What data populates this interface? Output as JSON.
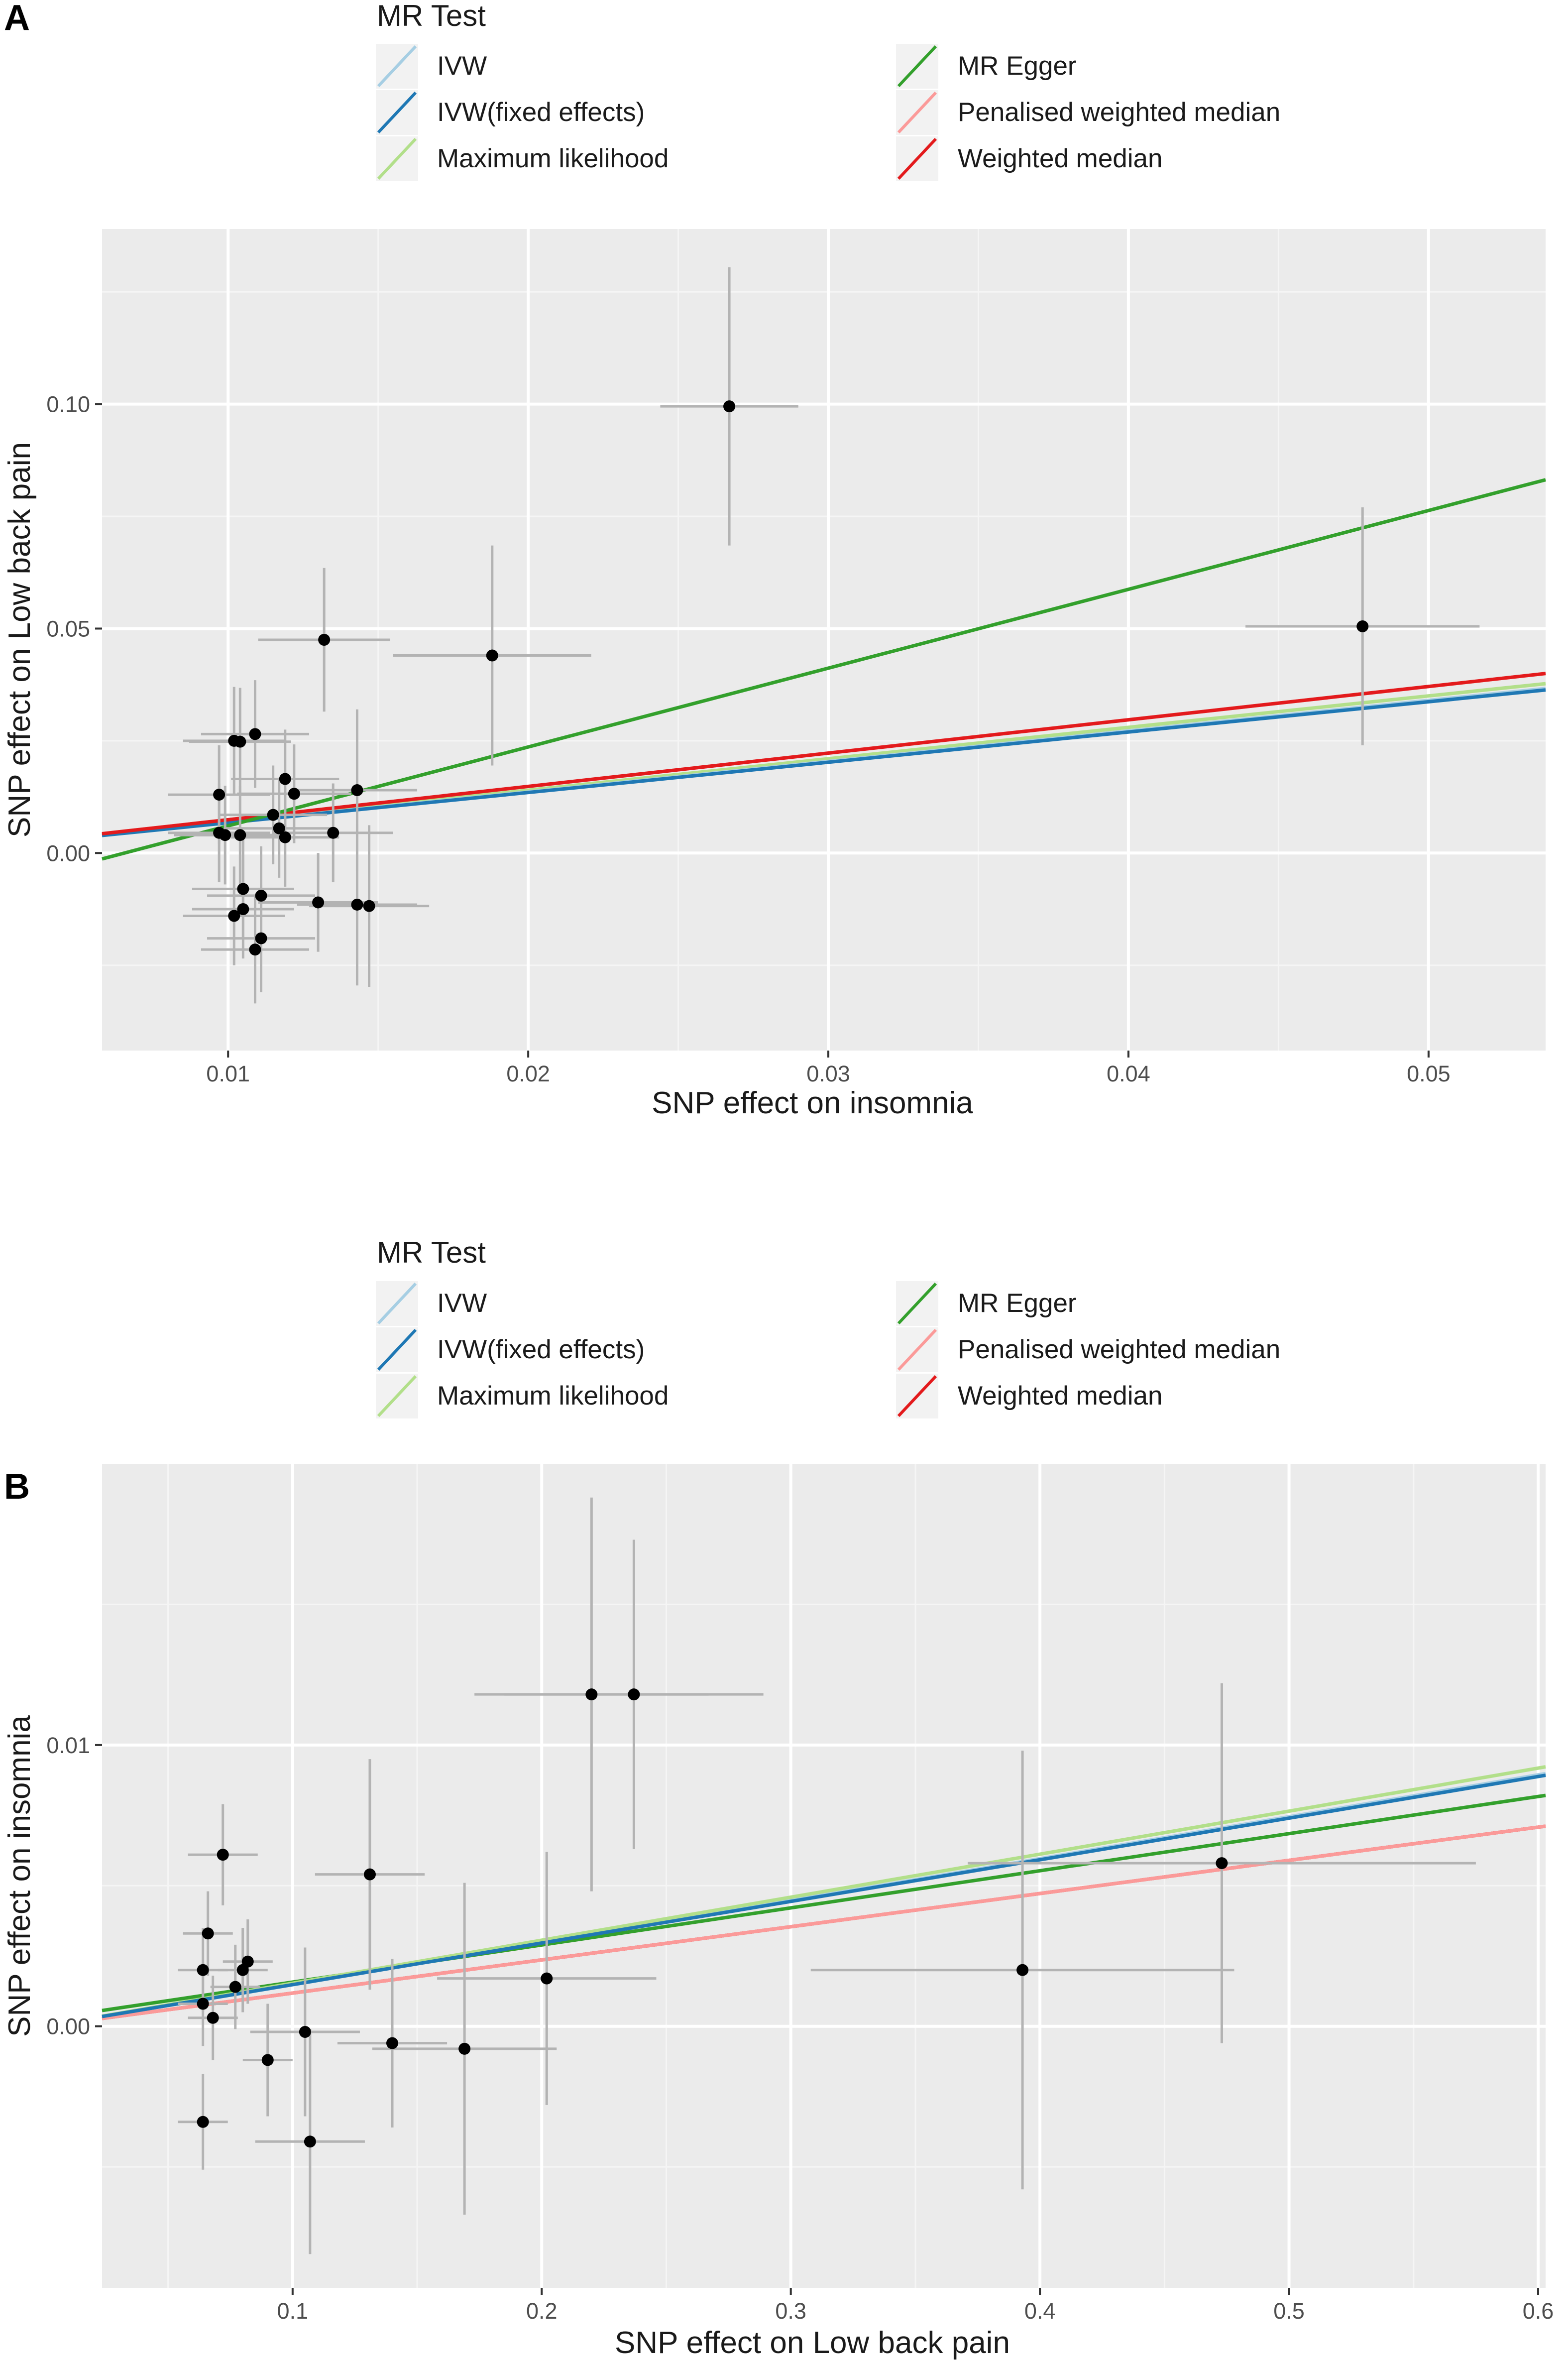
{
  "chart_data": [
    {
      "type": "scatter",
      "panel_label": "A",
      "xlabel": "SNP effect on insomnia",
      "ylabel": "SNP effect on Low back pain",
      "xlim": [
        0.0058,
        0.0539
      ],
      "ylim": [
        -0.044,
        0.139
      ],
      "x_ticks": [
        0.01,
        0.02,
        0.03,
        0.04,
        0.05
      ],
      "x_tick_labels": [
        "0.01",
        "0.02",
        "0.03",
        "0.04",
        "0.05"
      ],
      "y_ticks": [
        0.0,
        0.05,
        0.1
      ],
      "y_tick_labels": [
        "0.00",
        "0.05",
        "0.10"
      ],
      "grid": true,
      "legend": {
        "title": "MR Test",
        "position": "top",
        "entries": [
          {
            "name": "IVW",
            "color": "#a6cee3"
          },
          {
            "name": "IVW(fixed effects)",
            "color": "#1f78b4"
          },
          {
            "name": "Maximum likelihood",
            "color": "#b2df8a"
          },
          {
            "name": "MR Egger",
            "color": "#33a02c"
          },
          {
            "name": "Penalised weighted median",
            "color": "#fb9a99"
          },
          {
            "name": "Weighted median",
            "color": "#e31a1c"
          }
        ]
      },
      "lines": [
        {
          "name": "Penalised weighted median",
          "color": "#fb9a99",
          "intercept": 0,
          "slope": 0.742
        },
        {
          "name": "Maximum likelihood",
          "color": "#b2df8a",
          "intercept": 0,
          "slope": 0.7
        },
        {
          "name": "IVW",
          "color": "#a6cee3",
          "intercept": 0,
          "slope": 0.68
        },
        {
          "name": "IVW(fixed effects)",
          "color": "#1f78b4",
          "intercept": 0,
          "slope": 0.674
        },
        {
          "name": "Weighted median",
          "color": "#e31a1c",
          "intercept": 0,
          "slope": 0.742
        },
        {
          "name": "MR Egger",
          "color": "#33a02c",
          "intercept": -0.0115,
          "slope": 1.756
        }
      ],
      "points": [
        {
          "x": 0.0267,
          "y": 0.0995,
          "xse": 0.0023,
          "yse": 0.031
        },
        {
          "x": 0.0478,
          "y": 0.0505,
          "xse": 0.0039,
          "yse": 0.0265
        },
        {
          "x": 0.0188,
          "y": 0.044,
          "xse": 0.0033,
          "yse": 0.0245
        },
        {
          "x": 0.0132,
          "y": 0.0475,
          "xse": 0.0022,
          "yse": 0.016
        },
        {
          "x": 0.0109,
          "y": 0.0265,
          "xse": 0.0018,
          "yse": 0.012
        },
        {
          "x": 0.0102,
          "y": 0.025,
          "xse": 0.0017,
          "yse": 0.012
        },
        {
          "x": 0.0104,
          "y": 0.0248,
          "xse": 0.0017,
          "yse": 0.012
        },
        {
          "x": 0.0097,
          "y": 0.013,
          "xse": 0.0017,
          "yse": 0.011
        },
        {
          "x": 0.0119,
          "y": 0.0165,
          "xse": 0.0018,
          "yse": 0.011
        },
        {
          "x": 0.0122,
          "y": 0.0132,
          "xse": 0.0019,
          "yse": 0.011
        },
        {
          "x": 0.0143,
          "y": 0.014,
          "xse": 0.002,
          "yse": 0.018
        },
        {
          "x": 0.0115,
          "y": 0.0085,
          "xse": 0.0018,
          "yse": 0.011
        },
        {
          "x": 0.0117,
          "y": 0.0055,
          "xse": 0.0018,
          "yse": 0.011
        },
        {
          "x": 0.0119,
          "y": 0.0035,
          "xse": 0.0018,
          "yse": 0.011
        },
        {
          "x": 0.0135,
          "y": 0.0045,
          "xse": 0.002,
          "yse": 0.011
        },
        {
          "x": 0.0097,
          "y": 0.0045,
          "xse": 0.0017,
          "yse": 0.011
        },
        {
          "x": 0.0099,
          "y": 0.004,
          "xse": 0.0017,
          "yse": 0.011
        },
        {
          "x": 0.0104,
          "y": 0.004,
          "xse": 0.0017,
          "yse": 0.011
        },
        {
          "x": 0.0105,
          "y": -0.008,
          "xse": 0.0017,
          "yse": 0.011
        },
        {
          "x": 0.0111,
          "y": -0.0095,
          "xse": 0.0018,
          "yse": 0.011
        },
        {
          "x": 0.013,
          "y": -0.011,
          "xse": 0.002,
          "yse": 0.011
        },
        {
          "x": 0.0143,
          "y": -0.0115,
          "xse": 0.002,
          "yse": 0.018
        },
        {
          "x": 0.0147,
          "y": -0.0118,
          "xse": 0.002,
          "yse": 0.018
        },
        {
          "x": 0.0105,
          "y": -0.0125,
          "xse": 0.0017,
          "yse": 0.011
        },
        {
          "x": 0.0102,
          "y": -0.014,
          "xse": 0.0017,
          "yse": 0.011
        },
        {
          "x": 0.0111,
          "y": -0.019,
          "xse": 0.0018,
          "yse": 0.012
        },
        {
          "x": 0.0109,
          "y": -0.0215,
          "xse": 0.0018,
          "yse": 0.012
        }
      ]
    },
    {
      "type": "scatter",
      "panel_label": "B",
      "xlabel": "SNP effect on Low back pain",
      "ylabel": "SNP effect on insomnia",
      "xlim": [
        0.0235,
        0.603
      ],
      "ylim": [
        -0.0093,
        0.02
      ],
      "x_ticks": [
        0.1,
        0.2,
        0.3,
        0.4,
        0.5,
        0.6
      ],
      "x_tick_labels": [
        "0.1",
        "0.2",
        "0.3",
        "0.4",
        "0.5",
        "0.6"
      ],
      "y_ticks": [
        0.0,
        0.01
      ],
      "y_tick_labels": [
        "0.00",
        "0.01"
      ],
      "grid": true,
      "legend": {
        "title": "MR Test",
        "position": "top",
        "entries": [
          {
            "name": "IVW",
            "color": "#a6cee3"
          },
          {
            "name": "IVW(fixed effects)",
            "color": "#1f78b4"
          },
          {
            "name": "Maximum likelihood",
            "color": "#b2df8a"
          },
          {
            "name": "MR Egger",
            "color": "#33a02c"
          },
          {
            "name": "Penalised weighted median",
            "color": "#fb9a99"
          },
          {
            "name": "Weighted median",
            "color": "#e31a1c"
          }
        ]
      },
      "lines": [
        {
          "name": "Weighted median",
          "color": "#e31a1c",
          "intercept": 0,
          "slope": 0.0118
        },
        {
          "name": "Penalised weighted median",
          "color": "#fb9a99",
          "intercept": 0,
          "slope": 0.0118
        },
        {
          "name": "IVW",
          "color": "#a6cee3",
          "intercept": 0,
          "slope": 0.0149
        },
        {
          "name": "MR Egger",
          "color": "#33a02c",
          "intercept": 0.00025,
          "slope": 0.0132
        },
        {
          "name": "Maximum likelihood",
          "color": "#b2df8a",
          "intercept": 0,
          "slope": 0.0153
        },
        {
          "name": "IVW(fixed effects)",
          "color": "#1f78b4",
          "intercept": 0,
          "slope": 0.0148
        }
      ],
      "points": [
        {
          "x": 0.22,
          "y": 0.0118,
          "xse": 0.047,
          "yse": 0.007
        },
        {
          "x": 0.237,
          "y": 0.0118,
          "xse": 0.052,
          "yse": 0.0055
        },
        {
          "x": 0.473,
          "y": 0.0058,
          "xse": 0.102,
          "yse": 0.0064
        },
        {
          "x": 0.393,
          "y": 0.002,
          "xse": 0.085,
          "yse": 0.0078
        },
        {
          "x": 0.202,
          "y": 0.0017,
          "xse": 0.044,
          "yse": 0.0045
        },
        {
          "x": 0.131,
          "y": 0.0054,
          "xse": 0.022,
          "yse": 0.0041
        },
        {
          "x": 0.072,
          "y": 0.0061,
          "xse": 0.014,
          "yse": 0.0018
        },
        {
          "x": 0.066,
          "y": 0.0033,
          "xse": 0.01,
          "yse": 0.0015
        },
        {
          "x": 0.064,
          "y": 0.002,
          "xse": 0.01,
          "yse": 0.0015
        },
        {
          "x": 0.082,
          "y": 0.0023,
          "xse": 0.01,
          "yse": 0.0015
        },
        {
          "x": 0.08,
          "y": 0.002,
          "xse": 0.01,
          "yse": 0.0015
        },
        {
          "x": 0.077,
          "y": 0.0014,
          "xse": 0.01,
          "yse": 0.0015
        },
        {
          "x": 0.064,
          "y": 0.0008,
          "xse": 0.01,
          "yse": 0.0015
        },
        {
          "x": 0.068,
          "y": 0.0003,
          "xse": 0.01,
          "yse": 0.0015
        },
        {
          "x": 0.105,
          "y": -0.0002,
          "xse": 0.022,
          "yse": 0.003
        },
        {
          "x": 0.14,
          "y": -0.0006,
          "xse": 0.022,
          "yse": 0.003
        },
        {
          "x": 0.169,
          "y": -0.0008,
          "xse": 0.037,
          "yse": 0.0059
        },
        {
          "x": 0.09,
          "y": -0.0012,
          "xse": 0.01,
          "yse": 0.002
        },
        {
          "x": 0.064,
          "y": -0.0034,
          "xse": 0.01,
          "yse": 0.0017
        },
        {
          "x": 0.107,
          "y": -0.0041,
          "xse": 0.022,
          "yse": 0.004
        }
      ]
    }
  ]
}
